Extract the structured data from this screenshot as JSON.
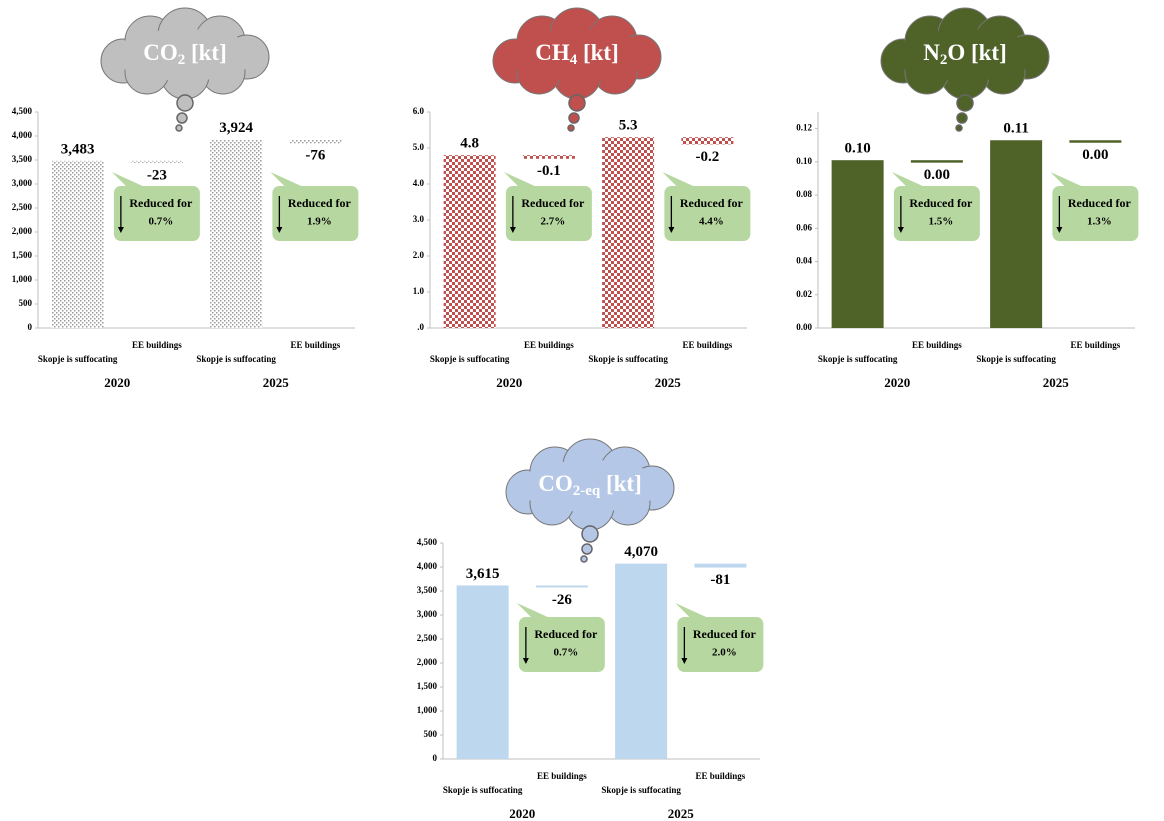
{
  "chart_data": [
    {
      "type": "waterfall",
      "title": [
        "CO",
        "2",
        " [kt]"
      ],
      "cloud_color": "#bfbfbf",
      "color": "#9a9a9a",
      "pattern": "dots",
      "categories": [
        "Skopje is suffocating",
        "EE buildings",
        "Skopje is suffocating",
        "EE buildings"
      ],
      "groups": [
        "2020",
        "2025"
      ],
      "values": [
        3483,
        -23,
        3924,
        -76
      ],
      "value_labels": [
        "3,483",
        "-23",
        "3,924",
        "-76"
      ],
      "ylim": [
        0,
        4500
      ],
      "yticks": [
        0,
        500,
        {
          "value": 1000,
          "label": "1,000"
        },
        {
          "value": 1500,
          "label": "1,500"
        },
        {
          "value": 2000,
          "label": "2,000"
        },
        {
          "value": 2500,
          "label": "2,500"
        },
        {
          "value": 3000,
          "label": "3,000"
        },
        {
          "value": 3500,
          "label": "3,500"
        },
        {
          "value": 4000,
          "label": "4,000"
        },
        {
          "value": 4500,
          "label": "4,500"
        }
      ],
      "annotations": [
        {
          "text": "Reduced for",
          "value": "0.7%"
        },
        {
          "text": "Reduced for",
          "value": "1.9%"
        }
      ]
    },
    {
      "type": "waterfall",
      "title": [
        "CH",
        "4",
        " [kt]"
      ],
      "cloud_color": "#c0504d",
      "color": "#c0504d",
      "pattern": "checker",
      "categories": [
        "Skopje is suffocating",
        "EE buildings",
        "Skopje is suffocating",
        "EE buildings"
      ],
      "groups": [
        "2020",
        "2025"
      ],
      "values": [
        4.8,
        -0.1,
        5.3,
        -0.2
      ],
      "ylim": [
        0,
        6
      ],
      "yticks": [
        {
          "value": 0,
          "label": ".0"
        },
        {
          "value": 1,
          "label": "1.0"
        },
        {
          "value": 2,
          "label": "2.0"
        },
        {
          "value": 3,
          "label": "3.0"
        },
        {
          "value": 4,
          "label": "4.0"
        },
        {
          "value": 5,
          "label": "5.0"
        },
        {
          "value": 6,
          "label": "6.0"
        }
      ],
      "annotations": [
        {
          "text": "Reduced for",
          "value": "2.7%"
        },
        {
          "text": "Reduced for",
          "value": "4.4%"
        }
      ]
    },
    {
      "type": "waterfall",
      "title": [
        "N",
        "2",
        "O [kt]"
      ],
      "cloud_color": "#4f6228",
      "color": "#4f6228",
      "pattern": "solid",
      "categories": [
        "Skopje is suffocating",
        "EE buildings",
        "Skopje is suffocating",
        "EE buildings"
      ],
      "groups": [
        "2020",
        "2025"
      ],
      "values": [
        0.101,
        -0.0015,
        0.113,
        -0.0015
      ],
      "value_labels": [
        "0.10",
        "0.00",
        "0.11",
        "0.00"
      ],
      "ylim": [
        0,
        0.13
      ],
      "yticks": [
        {
          "value": 0,
          "label": "0.00"
        },
        {
          "value": 0.02,
          "label": "0.02"
        },
        {
          "value": 0.04,
          "label": "0.04"
        },
        {
          "value": 0.06,
          "label": "0.06"
        },
        {
          "value": 0.08,
          "label": "0.08"
        },
        {
          "value": 0.1,
          "label": "0.10"
        },
        {
          "value": 0.12,
          "label": "0.12"
        }
      ],
      "annotations": [
        {
          "text": "Reduced for",
          "value": "1.5%"
        },
        {
          "text": "Reduced for",
          "value": "1.3%"
        }
      ]
    },
    {
      "type": "waterfall",
      "title": [
        "CO",
        "2-eq",
        " [kt]"
      ],
      "cloud_color": "#b4c7e7",
      "color": "#bdd7ee",
      "pattern": "solid",
      "categories": [
        "Skopje is suffocating",
        "EE buildings",
        "Skopje is suffocating",
        "EE buildings"
      ],
      "groups": [
        "2020",
        "2025"
      ],
      "values": [
        3615,
        -26,
        4070,
        -81
      ],
      "value_labels": [
        "3,615",
        "-26",
        "4,070",
        "-81"
      ],
      "ylim": [
        0,
        4500
      ],
      "yticks": [
        0,
        500,
        {
          "value": 1000,
          "label": "1,000"
        },
        {
          "value": 1500,
          "label": "1,500"
        },
        {
          "value": 2000,
          "label": "2,000"
        },
        {
          "value": 2500,
          "label": "2,500"
        },
        {
          "value": 3000,
          "label": "3,000"
        },
        {
          "value": 3500,
          "label": "3,500"
        },
        {
          "value": 4000,
          "label": "4,000"
        },
        {
          "value": 4500,
          "label": "4,500"
        }
      ],
      "annotations": [
        {
          "text": "Reduced for",
          "value": "0.7%"
        },
        {
          "text": "Reduced for",
          "value": "2.0%"
        }
      ]
    }
  ]
}
